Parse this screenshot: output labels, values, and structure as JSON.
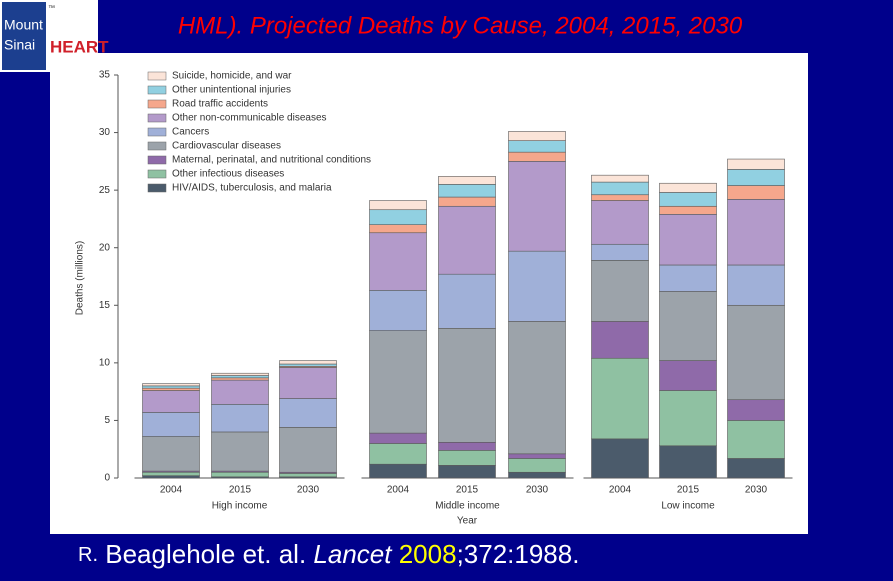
{
  "logo": {
    "line1": "Mount",
    "line2": "Sinai",
    "mark": "HEART",
    "tm": "™"
  },
  "title": "HML). Projected Deaths by Cause, 2004, 2015, 2030",
  "citation": {
    "prefix": "R.",
    "authors": "Beaglehole et. al.",
    "journal": "Lancet",
    "year": "2008",
    "rest": ";372:1988."
  },
  "chart_data": {
    "type": "stacked-bar",
    "y_label": "Deaths (millions)",
    "x_label": "Year",
    "categories": [
      "2004",
      "2015",
      "2030",
      "2004",
      "2015",
      "2030",
      "2004",
      "2015",
      "2030"
    ],
    "groups": [
      "High income",
      "Middle income",
      "Low income"
    ],
    "ylim": [
      0,
      35
    ],
    "yticks": [
      0,
      5,
      10,
      15,
      20,
      25,
      30,
      35
    ],
    "series": [
      {
        "name": "HIV/AIDS, tuberculosis, and malaria",
        "color": "#4b5b6b",
        "values": [
          0.2,
          0.1,
          0.1,
          1.2,
          1.1,
          0.5,
          3.4,
          2.8,
          1.7
        ]
      },
      {
        "name": "Other infectious diseases",
        "color": "#8fc1a2",
        "values": [
          0.3,
          0.4,
          0.3,
          1.8,
          1.3,
          1.2,
          7.0,
          4.8,
          3.3
        ]
      },
      {
        "name": "Maternal, perinatal, and nutritional conditions",
        "color": "#8f6aa9",
        "values": [
          0.1,
          0.1,
          0.1,
          0.9,
          0.7,
          0.4,
          3.2,
          2.6,
          1.8
        ]
      },
      {
        "name": "Cardiovascular diseases",
        "color": "#9ca3aa",
        "values": [
          3.0,
          3.4,
          3.9,
          8.9,
          9.9,
          11.5,
          5.3,
          6.0,
          8.2
        ]
      },
      {
        "name": "Cancers",
        "color": "#a0b0d8",
        "values": [
          2.1,
          2.4,
          2.5,
          3.5,
          4.7,
          6.1,
          1.4,
          2.3,
          3.5
        ]
      },
      {
        "name": "Other non-communicable diseases",
        "color": "#b39aca",
        "values": [
          1.9,
          2.1,
          2.7,
          5.0,
          5.9,
          7.8,
          3.8,
          4.4,
          5.7
        ]
      },
      {
        "name": "Road traffic accidents",
        "color": "#f5a78c",
        "values": [
          0.2,
          0.2,
          0.1,
          0.7,
          0.8,
          0.8,
          0.5,
          0.7,
          1.2
        ]
      },
      {
        "name": "Other unintentional injuries",
        "color": "#91d0e1",
        "values": [
          0.2,
          0.2,
          0.2,
          1.3,
          1.1,
          1.0,
          1.1,
          1.2,
          1.4
        ]
      },
      {
        "name": "Suicide, homicide, and war",
        "color": "#fbe4d8",
        "values": [
          0.2,
          0.2,
          0.3,
          0.8,
          0.7,
          0.8,
          0.6,
          0.8,
          0.9
        ]
      }
    ]
  }
}
